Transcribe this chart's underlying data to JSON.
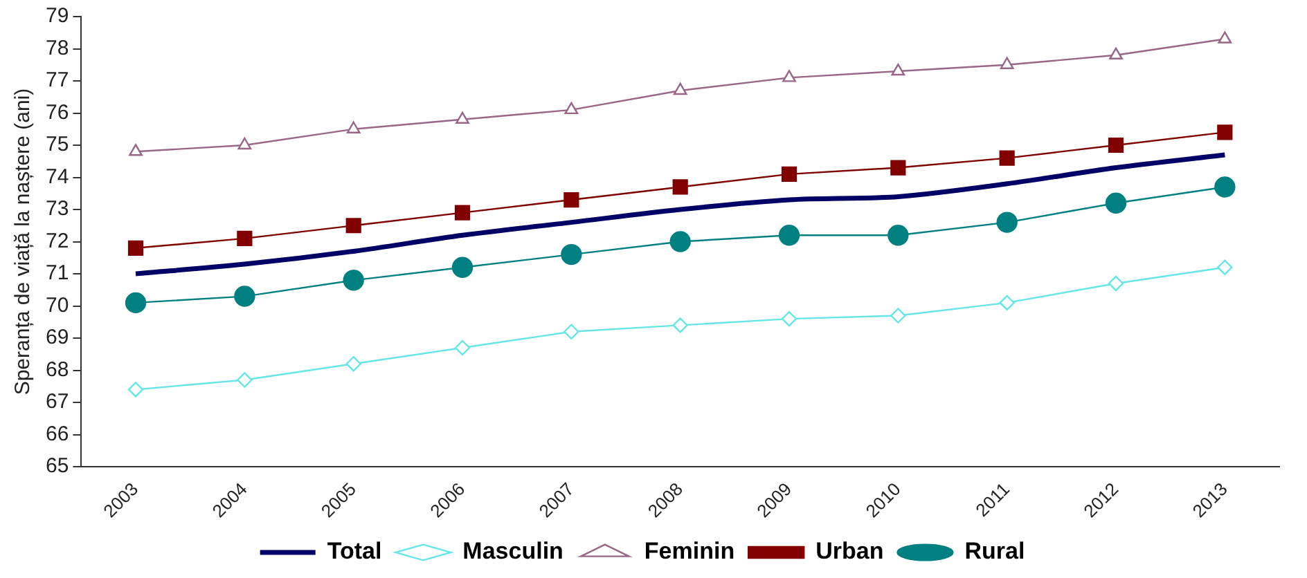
{
  "chart_data": {
    "type": "line",
    "ylabel": "Speranța de viață la naștere (ani)",
    "categories": [
      "2003",
      "2004",
      "2005",
      "2006",
      "2007",
      "2008",
      "2009",
      "2010",
      "2011",
      "2012",
      "2013"
    ],
    "series": [
      {
        "name": "Total",
        "color": "#000066",
        "marker": "none",
        "values": [
          71.0,
          71.3,
          71.7,
          72.2,
          72.6,
          73.0,
          73.3,
          73.4,
          73.8,
          74.3,
          74.7
        ]
      },
      {
        "name": "Masculin",
        "color": "#66e6e6",
        "marker": "diamond",
        "values": [
          67.4,
          67.7,
          68.2,
          68.7,
          69.2,
          69.4,
          69.6,
          69.7,
          70.1,
          70.7,
          71.2
        ]
      },
      {
        "name": "Feminin",
        "color": "#996688",
        "marker": "triangle",
        "values": [
          74.8,
          75.0,
          75.5,
          75.8,
          76.1,
          76.7,
          77.1,
          77.3,
          77.5,
          77.8,
          78.3
        ]
      },
      {
        "name": "Urban",
        "color": "#800000",
        "marker": "square",
        "values": [
          71.8,
          72.1,
          72.5,
          72.9,
          73.3,
          73.7,
          74.1,
          74.3,
          74.6,
          75.0,
          75.4
        ]
      },
      {
        "name": "Rural",
        "color": "#008080",
        "marker": "circle",
        "values": [
          70.1,
          70.3,
          70.8,
          71.2,
          71.6,
          72.0,
          72.2,
          72.2,
          72.6,
          73.2,
          73.7
        ]
      }
    ],
    "ylim": [
      65,
      79
    ],
    "yticks": [
      65,
      66,
      67,
      68,
      69,
      70,
      71,
      72,
      73,
      74,
      75,
      76,
      77,
      78,
      79
    ],
    "grid": false,
    "legend": "bottom"
  }
}
